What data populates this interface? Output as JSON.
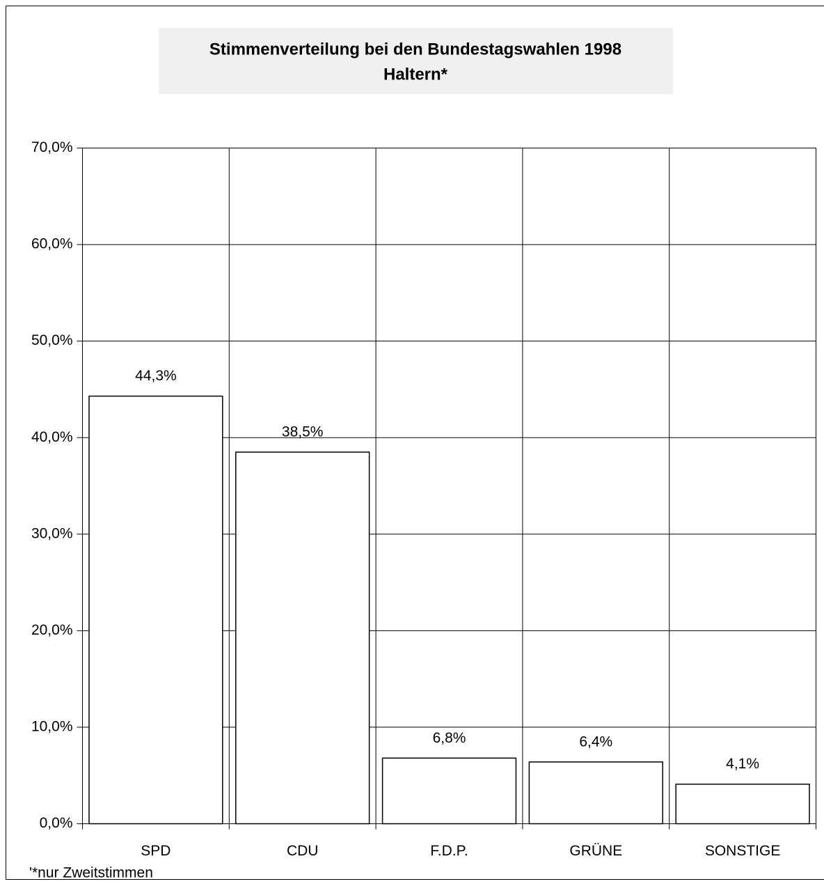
{
  "chart_data": {
    "type": "bar",
    "title": "Stimmenverteilung bei den Bundestagswahlen 1998",
    "subtitle": "Haltern*",
    "footnote": "'*nur Zweitstimmen",
    "categories": [
      "SPD",
      "CDU",
      "F.D.P.",
      "GRÜNE",
      "SONSTIGE"
    ],
    "values": [
      44.3,
      38.5,
      6.8,
      6.4,
      4.1
    ],
    "value_labels": [
      "44,3%",
      "38,5%",
      "6,8%",
      "6,4%",
      "4,1%"
    ],
    "color": "#ffffff",
    "ylim": [
      0,
      70
    ],
    "yticks": [
      {
        "value": 0,
        "label": "0,0%"
      },
      {
        "value": 10,
        "label": "10,0%"
      },
      {
        "value": 20,
        "label": "20,0%"
      },
      {
        "value": 30,
        "label": "30,0%"
      },
      {
        "value": 40,
        "label": "40,0%"
      },
      {
        "value": 50,
        "label": "50,0%"
      },
      {
        "value": 60,
        "label": "60,0%"
      },
      {
        "value": 70,
        "label": "70,0%"
      }
    ],
    "grid": true
  }
}
